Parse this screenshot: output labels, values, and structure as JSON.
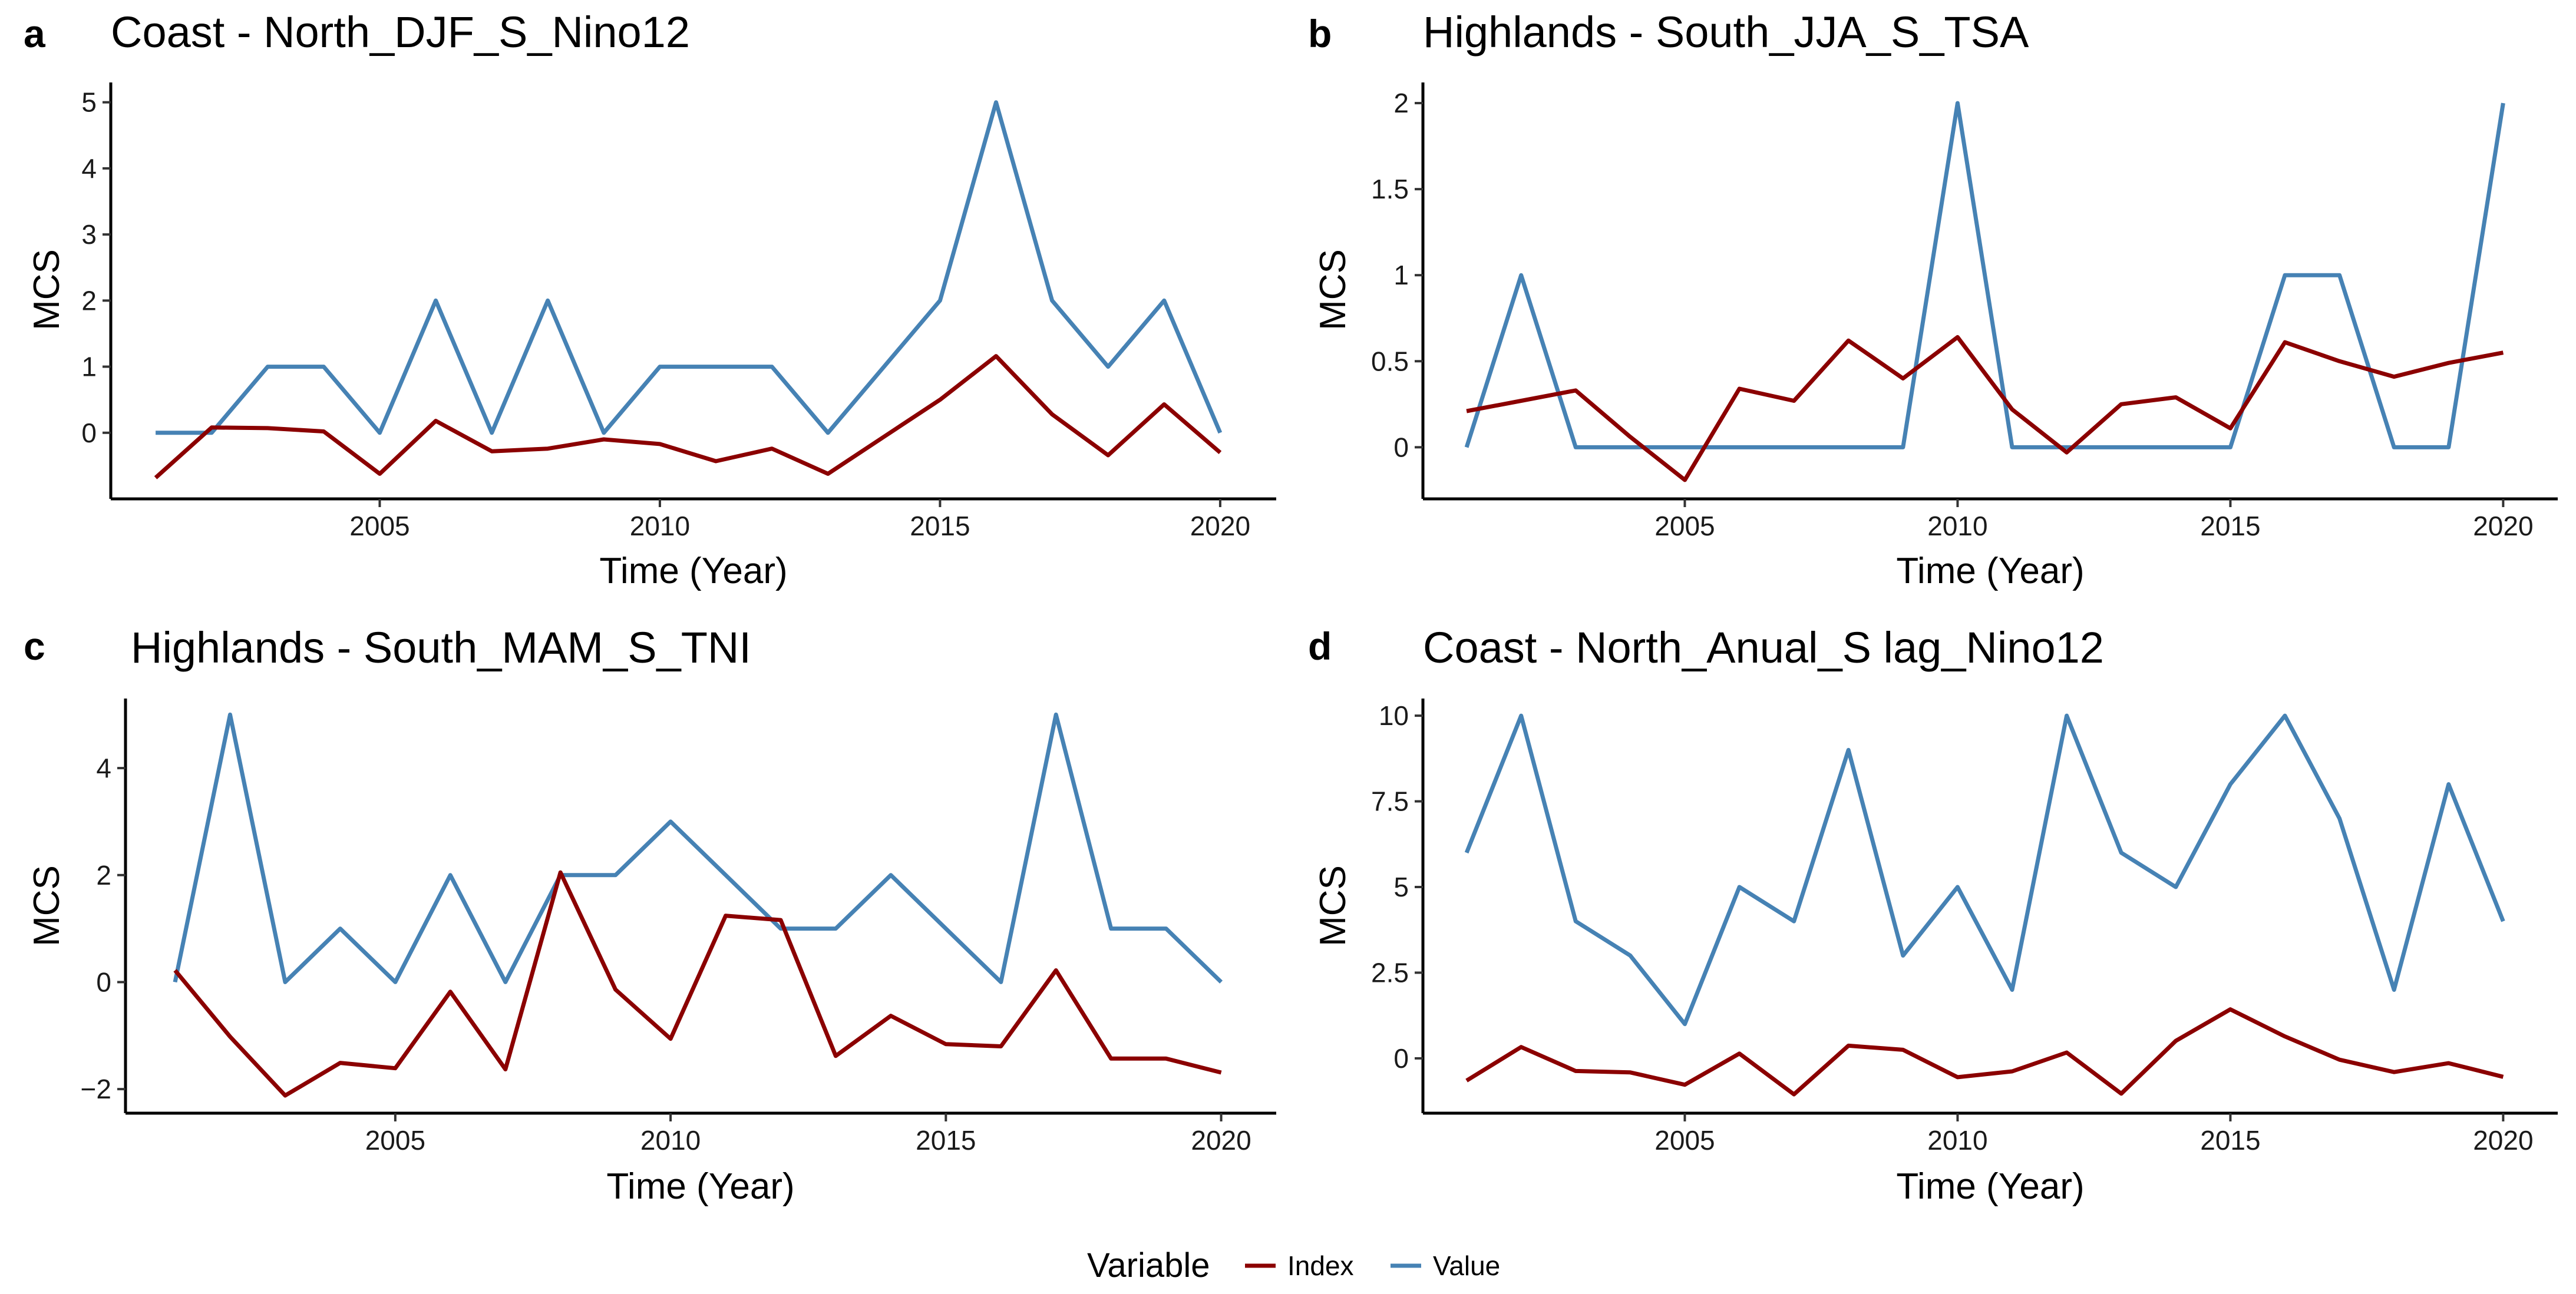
{
  "figure": {
    "legend": {
      "title": "Variable",
      "entries": [
        {
          "key": "index",
          "label": "Index",
          "color": "#8B0000"
        },
        {
          "key": "value",
          "label": "Value",
          "color": "#4682B4"
        }
      ]
    }
  },
  "chart_data": [
    {
      "panel": "a",
      "type": "line",
      "title": "Coast - North_DJF_S_Nino12",
      "xlabel": "Time (Year)",
      "ylabel": "MCS",
      "x": [
        2001,
        2002,
        2003,
        2004,
        2005,
        2006,
        2007,
        2008,
        2009,
        2010,
        2011,
        2012,
        2013,
        2014,
        2015,
        2016,
        2017,
        2018,
        2019,
        2020
      ],
      "xlim": [
        2000.2,
        2021.0
      ],
      "ylim": [
        -1.0,
        5.3
      ],
      "x_ticks": [
        2005,
        2010,
        2015,
        2020
      ],
      "y_ticks": [
        0,
        1,
        2,
        3,
        4,
        5
      ],
      "y_tick_labels": [
        "0",
        "1",
        "2",
        "3",
        "4",
        "5"
      ],
      "series": [
        {
          "name": "Index",
          "values": [
            -0.68,
            0.08,
            0.07,
            0.02,
            -0.62,
            0.18,
            -0.28,
            -0.24,
            -0.1,
            -0.17,
            -0.43,
            -0.24,
            -0.62,
            -0.06,
            0.5,
            1.16,
            0.28,
            -0.34,
            0.43,
            -0.3
          ]
        },
        {
          "name": "Value",
          "values": [
            0,
            0,
            1,
            1,
            0,
            2,
            0,
            2,
            0,
            1,
            1,
            1,
            0,
            1,
            2,
            5,
            2,
            1,
            2,
            0
          ]
        }
      ]
    },
    {
      "panel": "b",
      "type": "line",
      "title": "Highlands - South_JJA_S_TSA",
      "xlabel": "Time (Year)",
      "ylabel": "MCS",
      "x": [
        2001,
        2002,
        2003,
        2004,
        2005,
        2006,
        2007,
        2008,
        2009,
        2010,
        2011,
        2012,
        2013,
        2014,
        2015,
        2016,
        2017,
        2018,
        2019,
        2020
      ],
      "xlim": [
        2000.2,
        2021.0
      ],
      "ylim": [
        -0.3,
        2.12
      ],
      "x_ticks": [
        2005,
        2010,
        2015,
        2020
      ],
      "y_ticks": [
        0,
        0.5,
        1,
        1.5,
        2
      ],
      "y_tick_labels": [
        "0",
        "0.5",
        "1",
        "1.5",
        "2"
      ],
      "series": [
        {
          "name": "Index",
          "values": [
            0.21,
            0.27,
            0.33,
            0.06,
            -0.19,
            0.34,
            0.27,
            0.62,
            0.4,
            0.64,
            0.22,
            -0.03,
            0.25,
            0.29,
            0.11,
            0.61,
            0.5,
            0.41,
            0.49,
            0.55
          ]
        },
        {
          "name": "Value",
          "values": [
            0,
            1,
            0,
            0,
            0,
            0,
            0,
            0,
            0,
            2,
            0,
            0,
            0,
            0,
            0,
            1,
            1,
            0,
            0,
            2
          ]
        }
      ]
    },
    {
      "panel": "c",
      "type": "line",
      "title": "Highlands - South_MAM_S_TNI",
      "xlabel": "Time (Year)",
      "ylabel": "MCS",
      "x": [
        2001,
        2002,
        2003,
        2004,
        2005,
        2006,
        2007,
        2008,
        2009,
        2010,
        2011,
        2012,
        2013,
        2014,
        2015,
        2016,
        2017,
        2018,
        2019,
        2020
      ],
      "xlim": [
        2000.1,
        2021.0
      ],
      "ylim": [
        -2.45,
        5.3
      ],
      "x_ticks": [
        2005,
        2010,
        2015,
        2020
      ],
      "y_ticks": [
        -2,
        0,
        2,
        4
      ],
      "y_tick_labels": [
        "−2",
        "0",
        "2",
        "4"
      ],
      "series": [
        {
          "name": "Index",
          "values": [
            0.22,
            -1.02,
            -2.12,
            -1.51,
            -1.61,
            -0.18,
            -1.63,
            2.05,
            -0.14,
            -1.06,
            1.24,
            1.16,
            -1.38,
            -0.63,
            -1.16,
            -1.2,
            0.22,
            -1.43,
            -1.43,
            -1.69
          ]
        },
        {
          "name": "Value",
          "values": [
            0,
            5,
            0,
            1,
            0,
            2,
            0,
            2,
            2,
            3,
            2,
            1,
            1,
            2,
            1,
            0,
            5,
            1,
            1,
            0
          ]
        }
      ]
    },
    {
      "panel": "d",
      "type": "line",
      "title": "Coast - North_Anual_S lag_Nino12",
      "xlabel": "Time (Year)",
      "ylabel": "MCS",
      "x": [
        2001,
        2002,
        2003,
        2004,
        2005,
        2006,
        2007,
        2008,
        2009,
        2010,
        2011,
        2012,
        2013,
        2014,
        2015,
        2016,
        2017,
        2018,
        2019,
        2020
      ],
      "xlim": [
        2000.2,
        2021.0
      ],
      "ylim": [
        -1.6,
        10.5
      ],
      "x_ticks": [
        2005,
        2010,
        2015,
        2020
      ],
      "y_ticks": [
        0,
        2.5,
        5,
        7.5,
        10
      ],
      "y_tick_labels": [
        "0",
        "2.5",
        "5",
        "7.5",
        "10"
      ],
      "series": [
        {
          "name": "Index",
          "values": [
            -0.65,
            0.33,
            -0.37,
            -0.41,
            -0.77,
            0.14,
            -1.05,
            0.37,
            0.25,
            -0.55,
            -0.38,
            0.17,
            -1.03,
            0.51,
            1.43,
            0.64,
            -0.04,
            -0.4,
            -0.14,
            -0.54
          ]
        },
        {
          "name": "Value",
          "values": [
            6,
            10,
            4,
            3,
            1,
            5,
            4,
            9,
            3,
            5,
            2,
            10,
            6,
            5,
            8,
            10,
            7,
            2,
            8,
            4
          ]
        }
      ]
    }
  ]
}
